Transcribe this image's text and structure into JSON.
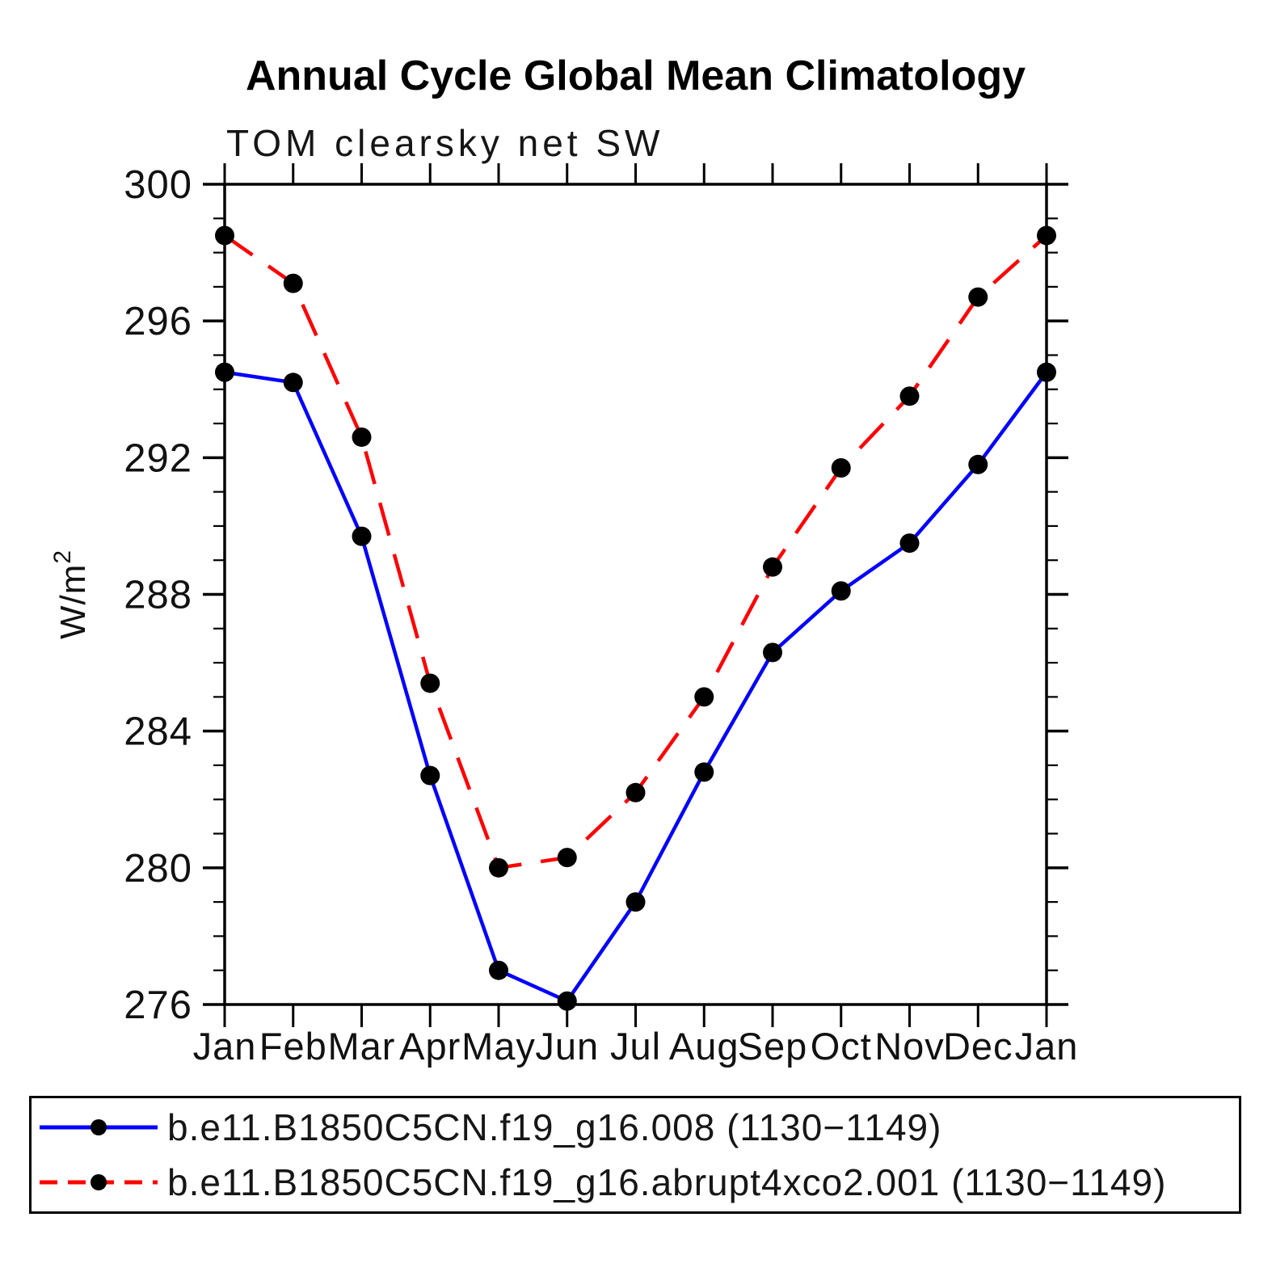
{
  "title": "Annual Cycle Global Mean Climatology",
  "subtitle": "TOM clearsky net SW",
  "chart_data": {
    "type": "line",
    "title": "Annual Cycle Global Mean Climatology",
    "subtitle": "TOM clearsky net SW",
    "xlabel": "",
    "ylabel": "W/m²",
    "ylabel_base": "W/m",
    "ylabel_sup": "2",
    "categories": [
      "Jan",
      "Feb",
      "Mar",
      "Apr",
      "May",
      "Jun",
      "Jul",
      "Aug",
      "Sep",
      "Oct",
      "Nov",
      "Dec",
      "Jan"
    ],
    "ylim": [
      276,
      300
    ],
    "ytick_labels": [
      276,
      280,
      284,
      288,
      292,
      296,
      300
    ],
    "ytick_minor_step": 1,
    "grid": false,
    "legend_position": "bottom",
    "frame_color": "#000000",
    "marker_radius_px": 12,
    "series": [
      {
        "name": "b.e11.B1850C5CN.f19_g16.008 (1130−1149)",
        "color": "#0000ff",
        "line_style": "solid",
        "marker": "circle",
        "marker_color": "#000000",
        "values": [
          294.5,
          294.2,
          289.7,
          282.7,
          277.0,
          276.1,
          279.0,
          282.8,
          286.3,
          288.1,
          289.5,
          291.8,
          294.5
        ]
      },
      {
        "name": "b.e11.B1850C5CN.f19_g16.abrupt4xco2.001 (1130−1149)",
        "color": "#ff0000",
        "line_style": "dashed",
        "marker": "circle",
        "marker_color": "#000000",
        "values": [
          298.5,
          297.1,
          292.6,
          285.4,
          280.0,
          280.3,
          282.2,
          285.0,
          288.8,
          291.7,
          293.8,
          296.7,
          298.5
        ]
      }
    ]
  }
}
